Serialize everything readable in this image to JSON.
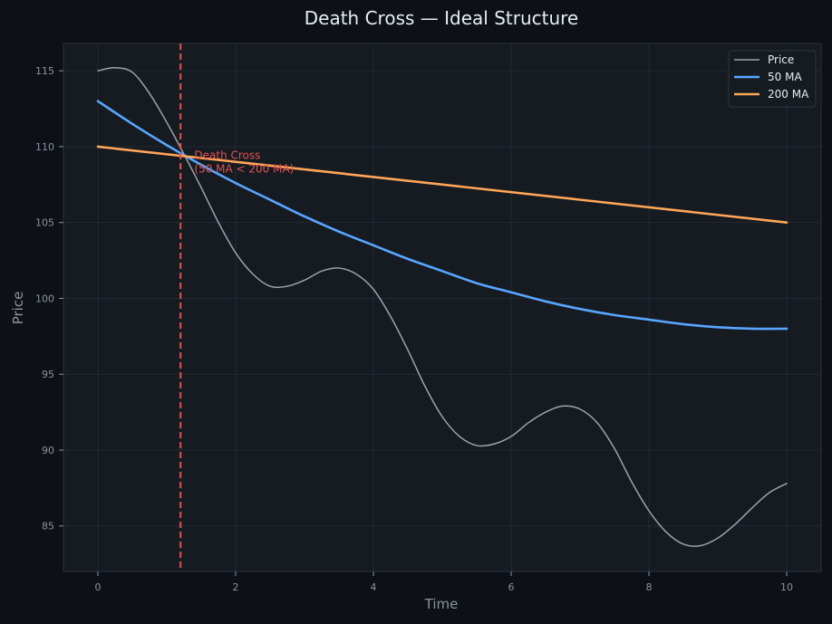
{
  "chart_data": {
    "type": "line",
    "title": "Death Cross — Ideal Structure",
    "xlabel": "Time",
    "ylabel": "Price",
    "xlim": [
      -0.5,
      10.5
    ],
    "ylim": [
      82,
      116.8
    ],
    "xticks": [
      0,
      2,
      4,
      6,
      8,
      10
    ],
    "yticks": [
      85,
      90,
      95,
      100,
      105,
      110,
      115
    ],
    "grid": true,
    "legend_position": "top-right",
    "series": [
      {
        "name": "Price",
        "color": "#9ca3ab",
        "x": [
          0,
          0.25,
          0.5,
          0.75,
          1,
          1.25,
          1.5,
          1.75,
          2,
          2.25,
          2.5,
          2.75,
          3,
          3.25,
          3.5,
          3.75,
          4,
          4.25,
          4.5,
          4.75,
          5,
          5.25,
          5.5,
          5.75,
          6,
          6.25,
          6.5,
          6.75,
          7,
          7.25,
          7.5,
          7.75,
          8,
          8.25,
          8.5,
          8.75,
          9,
          9.25,
          9.5,
          9.75,
          10
        ],
        "y": [
          115.0,
          115.2,
          114.9,
          113.5,
          111.6,
          109.5,
          107.3,
          105.0,
          103.0,
          101.6,
          100.8,
          100.8,
          101.2,
          101.8,
          102.0,
          101.6,
          100.6,
          98.8,
          96.6,
          94.2,
          92.2,
          90.9,
          90.3,
          90.4,
          90.9,
          91.8,
          92.5,
          92.9,
          92.7,
          91.8,
          90.1,
          87.9,
          86.0,
          84.6,
          83.8,
          83.7,
          84.2,
          85.1,
          86.2,
          87.2,
          87.8
        ]
      },
      {
        "name": "50 MA",
        "color": "#58a6ff",
        "x": [
          0,
          0.5,
          1,
          1.5,
          2,
          2.5,
          3,
          3.5,
          4,
          4.5,
          5,
          5.5,
          6,
          6.5,
          7,
          7.5,
          8,
          8.5,
          9,
          9.5,
          10
        ],
        "y": [
          113.0,
          111.5,
          110.1,
          108.8,
          107.6,
          106.5,
          105.4,
          104.4,
          103.5,
          102.6,
          101.8,
          101.0,
          100.4,
          99.8,
          99.3,
          98.9,
          98.6,
          98.3,
          98.1,
          98.0,
          98.0
        ]
      },
      {
        "name": "200 MA",
        "color": "#ffa657",
        "x": [
          0,
          10
        ],
        "y": [
          110.0,
          105.0
        ]
      }
    ],
    "annotations": [
      {
        "type": "vline",
        "x": 1.2,
        "color": "#e05252",
        "text_lines": [
          "Death Cross",
          "(50 MA < 200 MA)"
        ],
        "text_x": 1.4,
        "text_y": 109.2
      }
    ]
  }
}
